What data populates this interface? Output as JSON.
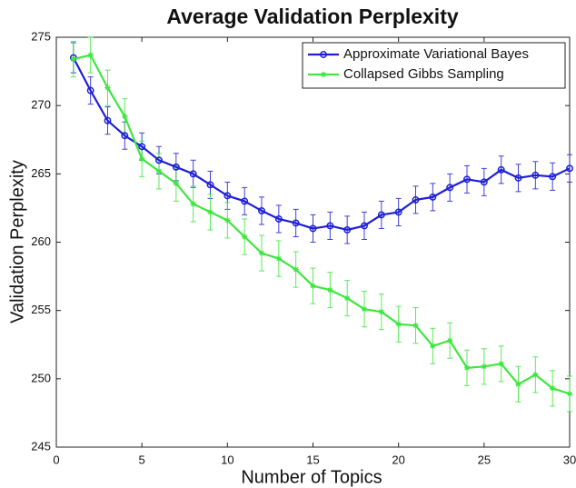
{
  "chart_data": {
    "type": "line",
    "title": "Average Validation Perplexity",
    "x_label": "Number of Topics",
    "y_label": "Validation Perplexity",
    "x": [
      1,
      2,
      3,
      4,
      5,
      6,
      7,
      8,
      9,
      10,
      11,
      12,
      13,
      14,
      15,
      16,
      17,
      18,
      19,
      20,
      21,
      22,
      23,
      24,
      25,
      26,
      27,
      28,
      29,
      30
    ],
    "series": [
      {
        "name": "Approximate Variational Bayes",
        "color": "#1f1fd6",
        "marker": "circle",
        "values": [
          273.5,
          271.1,
          268.9,
          267.8,
          267.0,
          266.0,
          265.5,
          265.0,
          264.2,
          263.4,
          263.0,
          262.3,
          261.7,
          261.4,
          261.0,
          261.2,
          260.9,
          261.2,
          262.0,
          262.2,
          263.1,
          263.3,
          264.0,
          264.6,
          264.4,
          265.3,
          264.7,
          264.9,
          264.8,
          265.4
        ],
        "errors": [
          1.1,
          1.0,
          1.0,
          1.0,
          1.0,
          1.0,
          1.0,
          1.0,
          1.0,
          1.0,
          1.0,
          1.0,
          1.0,
          1.0,
          1.0,
          1.0,
          1.0,
          1.0,
          1.0,
          1.0,
          1.0,
          1.0,
          1.0,
          1.0,
          1.0,
          1.0,
          1.0,
          1.0,
          1.0,
          1.0
        ]
      },
      {
        "name": "Collapsed Gibbs Sampling",
        "color": "#3ee63e",
        "marker": "star",
        "values": [
          273.4,
          273.7,
          271.3,
          269.2,
          266.1,
          265.2,
          264.3,
          262.8,
          262.2,
          261.6,
          260.4,
          259.2,
          258.8,
          258.0,
          256.8,
          256.5,
          255.9,
          255.1,
          254.9,
          254.0,
          253.9,
          252.4,
          252.8,
          250.8,
          250.9,
          251.1,
          249.6,
          250.3,
          249.3,
          248.9
        ],
        "errors": [
          1.3,
          1.3,
          1.3,
          1.3,
          1.3,
          1.3,
          1.3,
          1.3,
          1.3,
          1.3,
          1.3,
          1.3,
          1.3,
          1.3,
          1.3,
          1.3,
          1.3,
          1.3,
          1.3,
          1.3,
          1.3,
          1.3,
          1.3,
          1.3,
          1.3,
          1.3,
          1.3,
          1.3,
          1.3,
          1.3
        ]
      }
    ],
    "xlim": [
      0,
      30
    ],
    "xticks": [
      0,
      5,
      10,
      15,
      20,
      25,
      30
    ],
    "ylim": [
      245,
      275
    ],
    "yticks": [
      245,
      250,
      255,
      260,
      265,
      270,
      275
    ],
    "grid": false,
    "legend": "northeast"
  }
}
